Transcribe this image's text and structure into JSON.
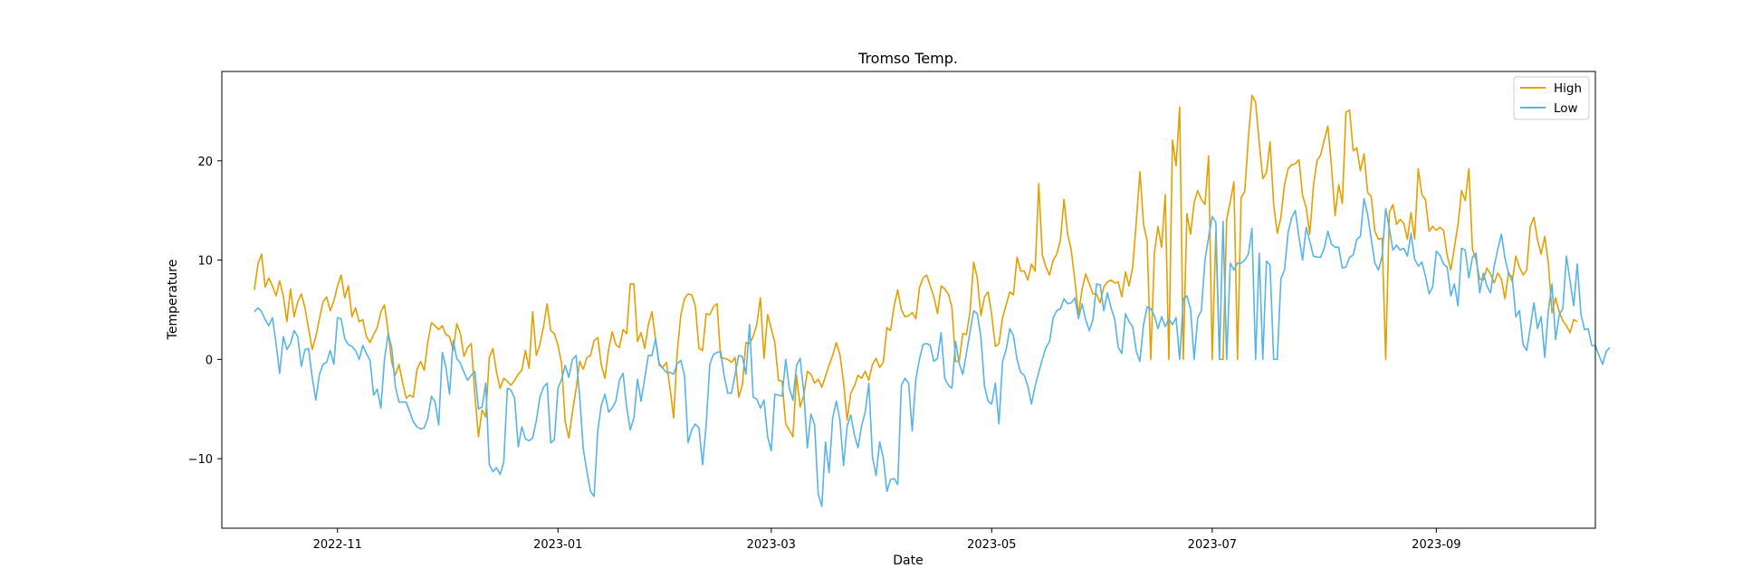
{
  "chart_data": {
    "type": "line",
    "title": "Tromso Temp.",
    "xlabel": "Date",
    "ylabel": "Temperature",
    "x_start": "2022-10-09",
    "x_step_days": 1,
    "xlim": [
      "2022-09-30",
      "2023-10-15"
    ],
    "ylim": [
      -17,
      29
    ],
    "x_ticks": [
      "2022-11-01",
      "2023-01-01",
      "2023-03-01",
      "2023-05-01",
      "2023-07-01",
      "2023-09-01"
    ],
    "x_tick_labels": [
      "2022-11",
      "2023-01",
      "2023-03",
      "2023-05",
      "2023-07",
      "2023-09"
    ],
    "y_ticks": [
      -10,
      0,
      10,
      20
    ],
    "y_tick_labels": [
      "−10",
      "0",
      "10",
      "20"
    ],
    "grid": false,
    "legend_position": "top-right",
    "series": [
      {
        "name": "High",
        "color": "#E69F00",
        "values": [
          7.0,
          9.6,
          10.6,
          7.3,
          8.2,
          7.4,
          6.4,
          7.9,
          6.4,
          3.8,
          7.1,
          4.3,
          5.8,
          6.6,
          5.2,
          3.1,
          1.0,
          2.3,
          4.1,
          5.8,
          6.3,
          4.9,
          5.9,
          7.4,
          8.5,
          6.2,
          7.4,
          4.3,
          5.2,
          3.8,
          4.0,
          2.3,
          1.7,
          2.5,
          3.2,
          4.8,
          5.5,
          2.8,
          -0.3,
          -1.6,
          -0.5,
          -2.3,
          -3.9,
          -3.6,
          -3.8,
          -1.0,
          -0.2,
          -1.1,
          1.8,
          3.7,
          3.4,
          3.0,
          3.4,
          2.5,
          2.3,
          0.9,
          3.6,
          2.6,
          0.3,
          1.2,
          1.6,
          -3.5,
          -7.8,
          -5.1,
          -5.8,
          0.2,
          1.1,
          -1.3,
          -2.9,
          -1.9,
          -2.2,
          -2.6,
          -2.1,
          -1.5,
          -1.1,
          0.9,
          -0.9,
          4.8,
          0.4,
          1.5,
          3.3,
          5.6,
          2.9,
          2.6,
          1.4,
          -0.4,
          -6.3,
          -7.9,
          -5.3,
          -3.0,
          -0.2,
          -1.0,
          0.2,
          0.4,
          1.9,
          2.2,
          -0.6,
          -1.9,
          1.0,
          2.8,
          1.5,
          1.2,
          3.0,
          2.6,
          7.6,
          7.6,
          1.8,
          2.7,
          1.1,
          3.5,
          4.8,
          2.0,
          -0.6,
          -0.8,
          -0.3,
          -2.9,
          -5.9,
          0.8,
          4.5,
          6.1,
          6.6,
          6.5,
          5.4,
          1.1,
          0.9,
          4.6,
          4.5,
          5.3,
          5.6,
          0.2,
          0.1,
          0.0,
          -0.3,
          0.2,
          -3.8,
          -2.6,
          1.7,
          1.6,
          2.3,
          3.5,
          6.2,
          0.1,
          4.5,
          3.1,
          1.7,
          -2.1,
          -2.2,
          -6.5,
          -7.1,
          -7.8,
          -1.6,
          -4.8,
          -3.6,
          -1.2,
          -1.5,
          -2.4,
          -2.0,
          -2.8,
          -1.7,
          -0.6,
          0.4,
          1.7,
          0.5,
          -2.3,
          -6.1,
          -3.4,
          -2.7,
          -1.6,
          -1.9,
          -1.2,
          -2.1,
          -0.5,
          0.1,
          -0.8,
          -0.3,
          3.2,
          2.9,
          5.4,
          7.0,
          5.0,
          4.3,
          4.4,
          4.7,
          4.1,
          7.2,
          8.2,
          8.5,
          7.4,
          6.3,
          4.6,
          7.4,
          7.1,
          6.6,
          5.2,
          -0.2,
          -0.2,
          2.6,
          2.5,
          4.8,
          9.8,
          8.2,
          4.4,
          6.3,
          6.8,
          4.5,
          1.3,
          1.6,
          4.2,
          5.5,
          6.8,
          6.5,
          10.3,
          8.9,
          8.9,
          8.0,
          9.6,
          8.9,
          17.7,
          10.5,
          9.3,
          8.5,
          10.0,
          10.6,
          12.0,
          16.1,
          12.6,
          11.0,
          8.0,
          4.5,
          7.1,
          8.6,
          7.6,
          6.6,
          6.6,
          5.7,
          7.3,
          7.8,
          8.0,
          7.7,
          7.8,
          6.3,
          8.8,
          7.4,
          9.3,
          13.9,
          18.9,
          13.6,
          11.9,
          0.0,
          10.7,
          13.4,
          11.3,
          16.6,
          0.0,
          22.1,
          19.5,
          25.4,
          0.0,
          14.7,
          12.6,
          15.8,
          17.0,
          16.1,
          15.6,
          20.5,
          0.0,
          12.9,
          0.0,
          0.0,
          14.1,
          15.9,
          17.9,
          0.0,
          16.3,
          16.9,
          22.3,
          26.6,
          25.9,
          21.8,
          18.2,
          18.8,
          21.9,
          15.6,
          12.7,
          14.3,
          17.6,
          19.2,
          19.6,
          19.7,
          20.1,
          16.5,
          15.3,
          12.6,
          17.5,
          20.0,
          20.6,
          22.1,
          23.5,
          19.4,
          14.5,
          17.6,
          15.7,
          24.9,
          25.1,
          21.0,
          21.3,
          19.0,
          20.7,
          16.8,
          16.4,
          12.9,
          12.1,
          12.2,
          0.0,
          14.8,
          15.6,
          13.6,
          14.1,
          13.7,
          12.1,
          14.8,
          12.1,
          19.2,
          16.6,
          16.1,
          12.9,
          13.4,
          13.0,
          13.3,
          13.0,
          10.5,
          9.0,
          11.3,
          13.6,
          17.0,
          16.0,
          19.2,
          11.1,
          10.0,
          8.1,
          8.0,
          9.2,
          8.6,
          7.7,
          8.7,
          8.1,
          6.1,
          8.8,
          7.8,
          10.4,
          9.3,
          8.5,
          9.0,
          13.4,
          14.3,
          12.0,
          10.6,
          12.4,
          9.7,
          4.7,
          6.2,
          4.8,
          3.9,
          3.4,
          2.7,
          4.0,
          3.8
        ]
      },
      {
        "name": "Low",
        "color": "#56B4E9",
        "values": [
          4.8,
          5.2,
          4.8,
          4.0,
          3.4,
          4.2,
          1.6,
          -1.4,
          2.3,
          1.0,
          1.6,
          2.9,
          2.3,
          -0.7,
          1.0,
          1.1,
          -1.8,
          -4.1,
          -1.5,
          -0.5,
          -0.3,
          0.9,
          -0.5,
          4.2,
          4.1,
          2.1,
          1.5,
          1.3,
          0.9,
          0.0,
          1.4,
          0.6,
          -0.1,
          -3.6,
          -3.0,
          -4.9,
          0.0,
          2.6,
          1.2,
          -2.7,
          -4.3,
          -4.3,
          -4.3,
          -5.3,
          -6.3,
          -6.8,
          -7.0,
          -6.9,
          -5.9,
          -3.7,
          -4.3,
          -6.6,
          0.7,
          -0.8,
          -3.5,
          1.9,
          0.1,
          -0.4,
          -1.3,
          -2.1,
          -1.6,
          -1.2,
          -5.0,
          -4.8,
          -2.4,
          -10.6,
          -11.3,
          -10.9,
          -11.6,
          -10.3,
          -2.9,
          -3.1,
          -3.9,
          -8.8,
          -6.8,
          -8.0,
          -8.2,
          -7.9,
          -6.2,
          -3.8,
          -2.8,
          -2.4,
          -8.4,
          -8.1,
          -2.9,
          -2.0,
          -0.6,
          -1.8,
          0.0,
          0.4,
          -3.7,
          -9.0,
          -11.3,
          -13.3,
          -13.8,
          -7.2,
          -4.6,
          -3.5,
          -5.3,
          -4.9,
          -4.2,
          -2.1,
          -1.4,
          -4.8,
          -7.1,
          -5.9,
          -2.0,
          -4.2,
          -1.9,
          0.4,
          0.4,
          2.1,
          -0.4,
          -0.9,
          -1.3,
          -1.3,
          -1.5,
          -0.4,
          -0.1,
          -1.6,
          -8.4,
          -7.1,
          -6.5,
          -6.9,
          -10.6,
          -6.6,
          -0.5,
          0.5,
          0.7,
          0.8,
          -1.7,
          -3.4,
          -3.4,
          -1.5,
          0.4,
          0.3,
          -1.5,
          3.5,
          -3.8,
          -4.0,
          -4.9,
          -4.1,
          -7.8,
          -9.2,
          -3.5,
          -3.6,
          -3.7,
          0.0,
          -2.9,
          -4.1,
          -0.6,
          0.1,
          -3.3,
          -8.9,
          -5.5,
          -6.6,
          -13.6,
          -14.8,
          -8.3,
          -11.4,
          -5.9,
          -4.2,
          -6.1,
          -10.7,
          -6.7,
          -5.6,
          -7.6,
          -8.9,
          -6.7,
          -5.3,
          -2.4,
          -9.8,
          -11.7,
          -8.3,
          -9.9,
          -13.3,
          -12.1,
          -12.0,
          -12.6,
          -2.6,
          -1.9,
          -2.4,
          -7.2,
          -2.0,
          0.0,
          1.5,
          1.6,
          1.4,
          -0.2,
          0.1,
          2.7,
          -1.9,
          -2.6,
          -2.9,
          1.8,
          -0.4,
          -1.5,
          0.6,
          2.8,
          4.9,
          4.6,
          2.3,
          -2.7,
          -4.2,
          -4.5,
          -2.4,
          -6.5,
          -0.2,
          1.0,
          3.1,
          2.4,
          0.0,
          -1.3,
          -1.6,
          -2.7,
          -4.5,
          -2.7,
          -1.3,
          0.0,
          1.2,
          1.8,
          4.2,
          4.9,
          5.1,
          6.1,
          5.6,
          5.7,
          6.2,
          4.1,
          5.6,
          4.0,
          2.9,
          4.0,
          7.6,
          7.5,
          4.9,
          6.7,
          5.2,
          4.1,
          1.2,
          0.6,
          4.6,
          3.8,
          3.3,
          0.8,
          -0.2,
          3.5,
          5.3,
          5.1,
          4.4,
          3.1,
          4.3,
          3.3,
          4.1,
          3.5,
          4.2,
          0.0,
          6.1,
          6.4,
          5.1,
          0.0,
          4.2,
          4.9,
          10.0,
          12.3,
          14.4,
          13.8,
          0.0,
          13.9,
          0.0,
          9.7,
          9.0,
          9.7,
          9.7,
          10.0,
          10.6,
          13.2,
          0.0,
          10.7,
          0.0,
          9.9,
          9.5,
          0.0,
          0.0,
          8.1,
          9.0,
          12.8,
          14.3,
          15.0,
          12.3,
          10.0,
          13.3,
          11.9,
          10.4,
          10.3,
          10.3,
          11.2,
          12.9,
          11.6,
          11.3,
          11.3,
          9.2,
          9.3,
          10.3,
          10.5,
          12.1,
          12.4,
          16.2,
          14.6,
          12.1,
          9.7,
          9.0,
          10.4,
          15.2,
          13.2,
          11.0,
          11.5,
          11.0,
          11.2,
          10.4,
          12.7,
          10.1,
          9.4,
          9.8,
          8.4,
          6.6,
          7.3,
          10.9,
          10.5,
          9.6,
          9.3,
          6.4,
          7.6,
          5.4,
          11.2,
          11.0,
          8.2,
          10.3,
          10.7,
          6.7,
          8.7,
          7.4,
          6.7,
          9.4,
          11.1,
          12.6,
          10.2,
          8.6,
          8.3,
          4.3,
          4.9,
          1.5,
          0.9,
          3.2,
          5.7,
          3.1,
          4.3,
          0.2,
          4.9,
          7.6,
          2.0,
          4.5,
          5.1,
          10.4,
          7.9,
          5.4,
          9.6,
          4.6,
          3.0,
          3.1,
          1.4,
          1.4,
          0.4,
          -0.5,
          0.8,
          1.2
        ]
      }
    ]
  }
}
